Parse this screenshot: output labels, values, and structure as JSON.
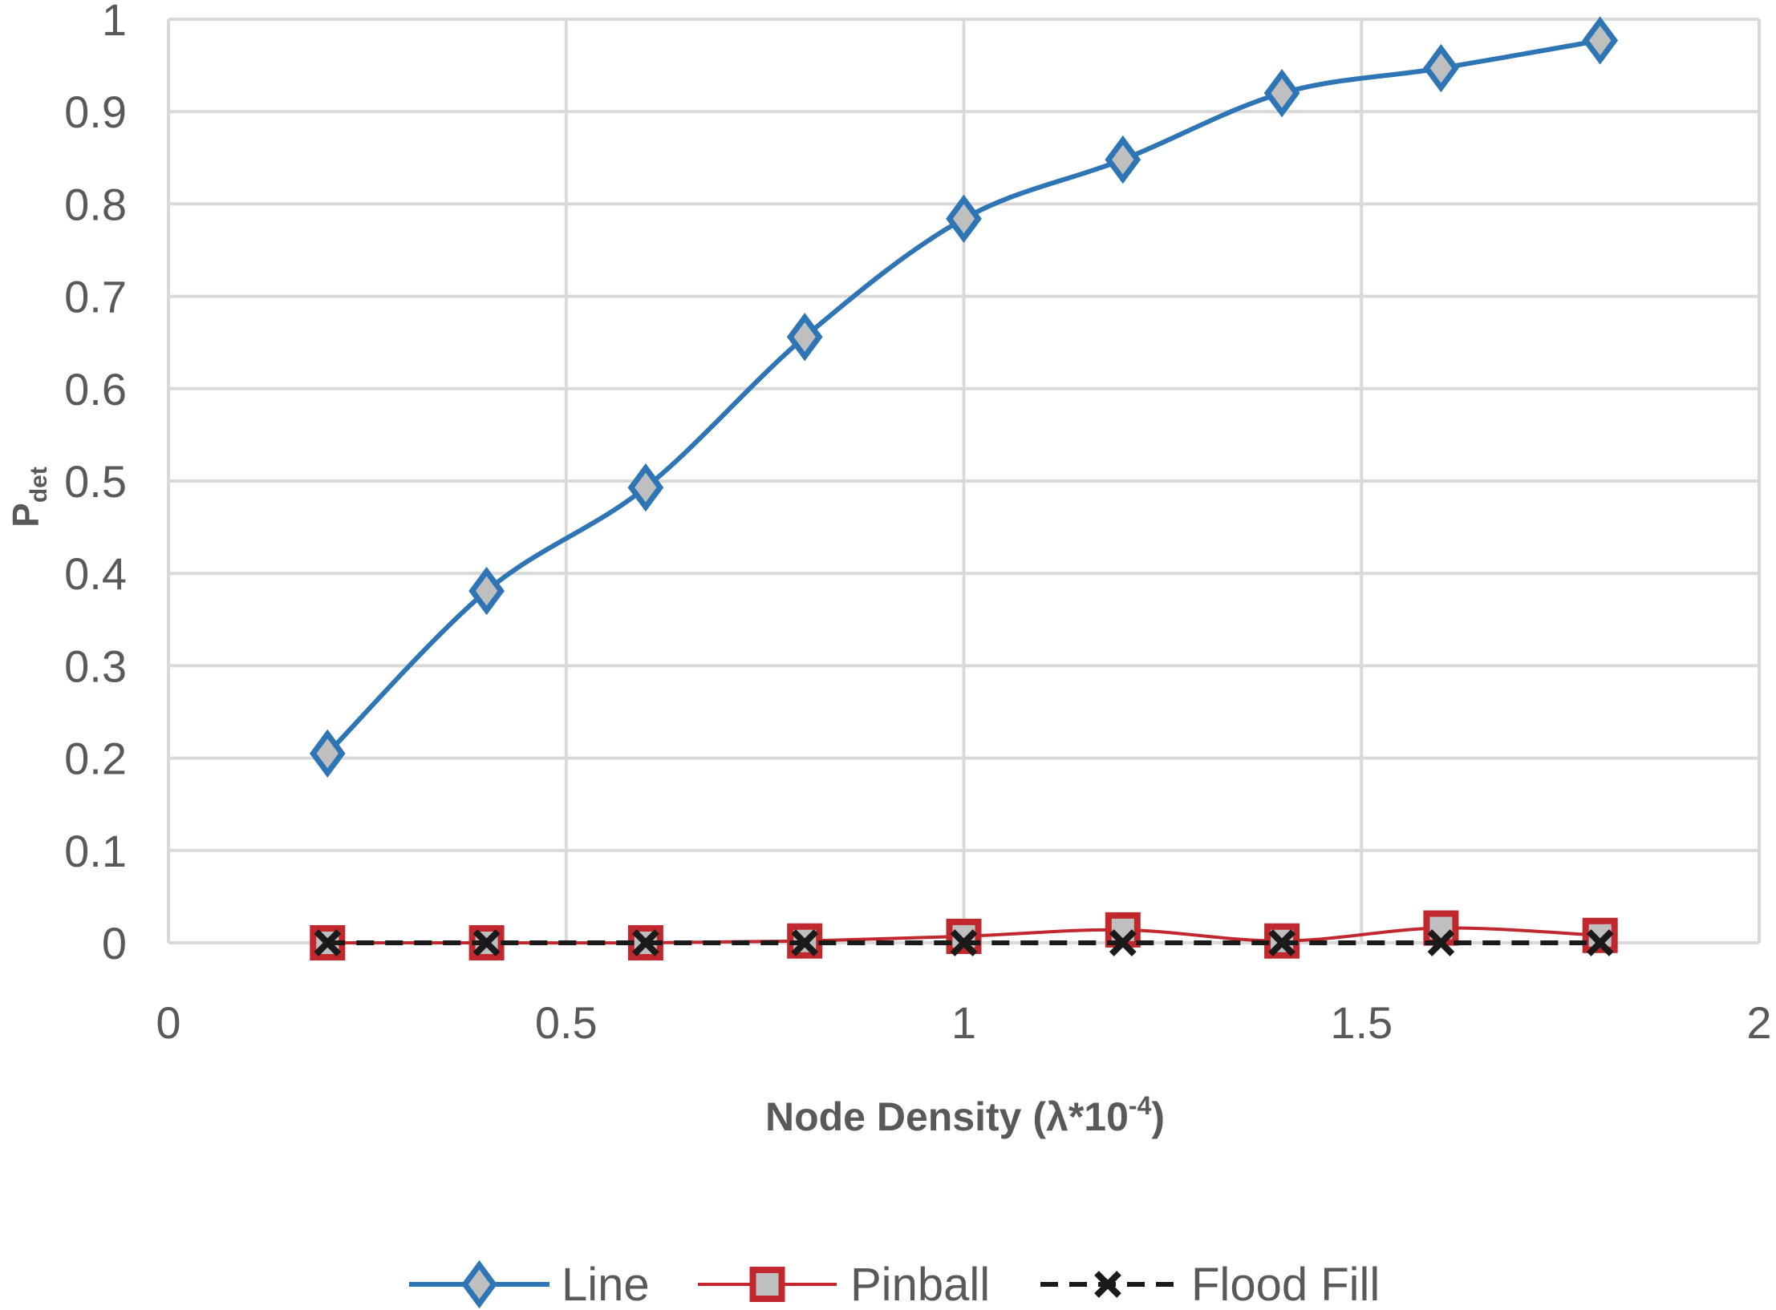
{
  "chart_data": {
    "type": "line",
    "title": "",
    "xlabel": {
      "main": "Node Density (λ*10",
      "sup": "-4",
      "close": ")"
    },
    "ylabel": {
      "main": "P",
      "sub": "det"
    },
    "xlim": [
      0,
      2
    ],
    "ylim": [
      0,
      1
    ],
    "x_ticks": [
      "0",
      "0.5",
      "1",
      "1.5",
      "2"
    ],
    "y_ticks": [
      "0",
      "0.1",
      "0.2",
      "0.3",
      "0.4",
      "0.5",
      "0.6",
      "0.7",
      "0.8",
      "0.9",
      "1"
    ],
    "grid": true,
    "legend_position": "bottom",
    "x": [
      0.2,
      0.4,
      0.6,
      0.8,
      1.0,
      1.2,
      1.4,
      1.6,
      1.8
    ],
    "series": [
      {
        "name": "Line",
        "color": "#2E75B6",
        "marker": "diamond",
        "dash": "solid",
        "values": [
          0.205,
          0.381,
          0.493,
          0.656,
          0.784,
          0.848,
          0.92,
          0.947,
          0.977
        ]
      },
      {
        "name": "Pinball",
        "color": "#C0282D",
        "marker": "square",
        "dash": "solid",
        "values": [
          0.0,
          0.0,
          0.0,
          0.002,
          0.007,
          0.014,
          0.002,
          0.016,
          0.008
        ]
      },
      {
        "name": "Flood Fill",
        "color": "#1A1A1A",
        "marker": "x",
        "dash": "dashed",
        "values": [
          0,
          0,
          0,
          0,
          0,
          0,
          0,
          0,
          0
        ]
      }
    ]
  }
}
